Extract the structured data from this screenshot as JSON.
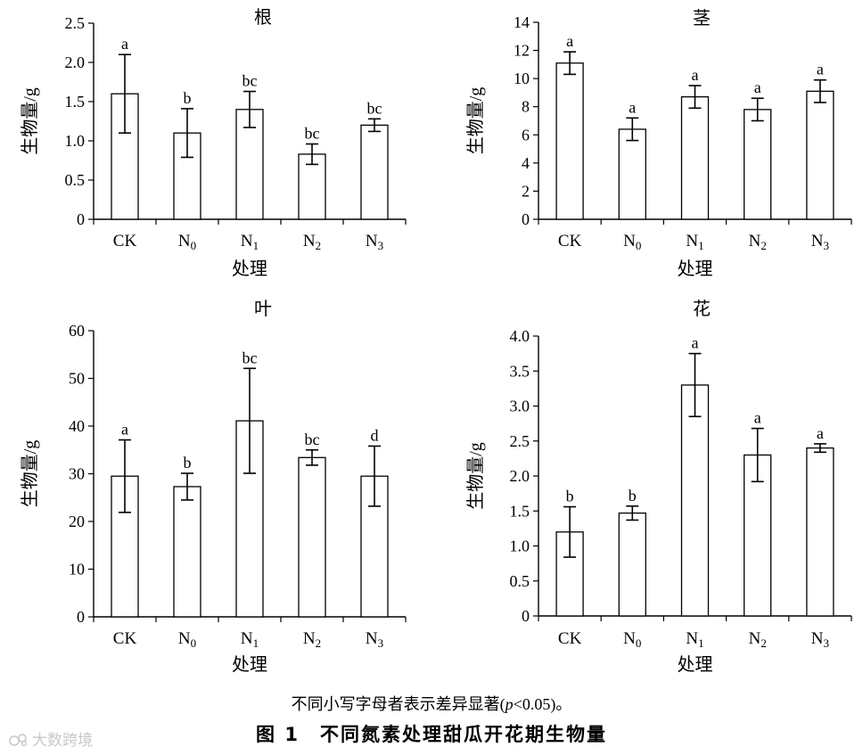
{
  "chart_data": [
    {
      "type": "bar",
      "title": "根",
      "ylabel": "生物量/g",
      "xlabel": "处理",
      "ylim": [
        0,
        2.5
      ],
      "yticks": [
        "0",
        "0.5",
        "1.0",
        "1.5",
        "2.0",
        "2.5"
      ],
      "ytick_values": [
        0,
        0.5,
        1.0,
        1.5,
        2.0,
        2.5
      ],
      "categories": [
        "CK",
        "N0",
        "N1",
        "N2",
        "N3"
      ],
      "values": [
        1.6,
        1.1,
        1.4,
        0.83,
        1.2
      ],
      "errors": [
        0.5,
        0.31,
        0.23,
        0.13,
        0.08
      ],
      "letters": [
        "a",
        "b",
        "bc",
        "bc",
        "bc"
      ]
    },
    {
      "type": "bar",
      "title": "茎",
      "ylabel": "生物量/g",
      "xlabel": "处理",
      "ylim": [
        0,
        14
      ],
      "yticks": [
        "0",
        "2",
        "4",
        "6",
        "8",
        "10",
        "12",
        "14"
      ],
      "ytick_values": [
        0,
        2,
        4,
        6,
        8,
        10,
        12,
        14
      ],
      "categories": [
        "CK",
        "N0",
        "N1",
        "N2",
        "N3"
      ],
      "values": [
        11.1,
        6.4,
        8.7,
        7.8,
        9.1
      ],
      "errors": [
        0.8,
        0.8,
        0.8,
        0.8,
        0.8
      ],
      "letters": [
        "a",
        "a",
        "a",
        "a",
        "a"
      ]
    },
    {
      "type": "bar",
      "title": "叶",
      "ylabel": "生物量/g",
      "xlabel": "处理",
      "ylim": [
        0,
        60
      ],
      "yticks": [
        "0",
        "10",
        "20",
        "30",
        "40",
        "50",
        "60"
      ],
      "ytick_values": [
        0,
        10,
        20,
        30,
        40,
        50,
        60
      ],
      "categories": [
        "CK",
        "N0",
        "N1",
        "N2",
        "N3"
      ],
      "values": [
        29.5,
        27.3,
        41.1,
        33.4,
        29.5
      ],
      "errors": [
        7.6,
        2.8,
        11.0,
        1.6,
        6.3
      ],
      "letters": [
        "a",
        "b",
        "bc",
        "bc",
        "d"
      ]
    },
    {
      "type": "bar",
      "title": "花",
      "ylabel": "生物量/g",
      "xlabel": "处理",
      "ylim": [
        0,
        4.0
      ],
      "yticks": [
        "0",
        "0.5",
        "1.0",
        "1.5",
        "2.0",
        "2.5",
        "3.0",
        "3.5",
        "4.0"
      ],
      "ytick_values": [
        0,
        0.5,
        1.0,
        1.5,
        2.0,
        2.5,
        3.0,
        3.5,
        4.0
      ],
      "categories": [
        "CK",
        "N0",
        "N1",
        "N2",
        "N3"
      ],
      "values": [
        1.2,
        1.47,
        3.3,
        2.3,
        2.4
      ],
      "errors": [
        0.36,
        0.1,
        0.45,
        0.38,
        0.06
      ],
      "letters": [
        "b",
        "b",
        "a",
        "a",
        "a"
      ]
    }
  ],
  "category_labels": [
    {
      "base": "CK",
      "sub": ""
    },
    {
      "base": "N",
      "sub": "0"
    },
    {
      "base": "N",
      "sub": "1"
    },
    {
      "base": "N",
      "sub": "2"
    },
    {
      "base": "N",
      "sub": "3"
    }
  ],
  "caption": {
    "note_prefix": "不同小写字母者表示差异显著(",
    "note_var": "p",
    "note_suffix": "<0.05)。",
    "title": "图 1　不同氮素处理甜瓜开花期生物量"
  },
  "watermark": "大数跨境"
}
